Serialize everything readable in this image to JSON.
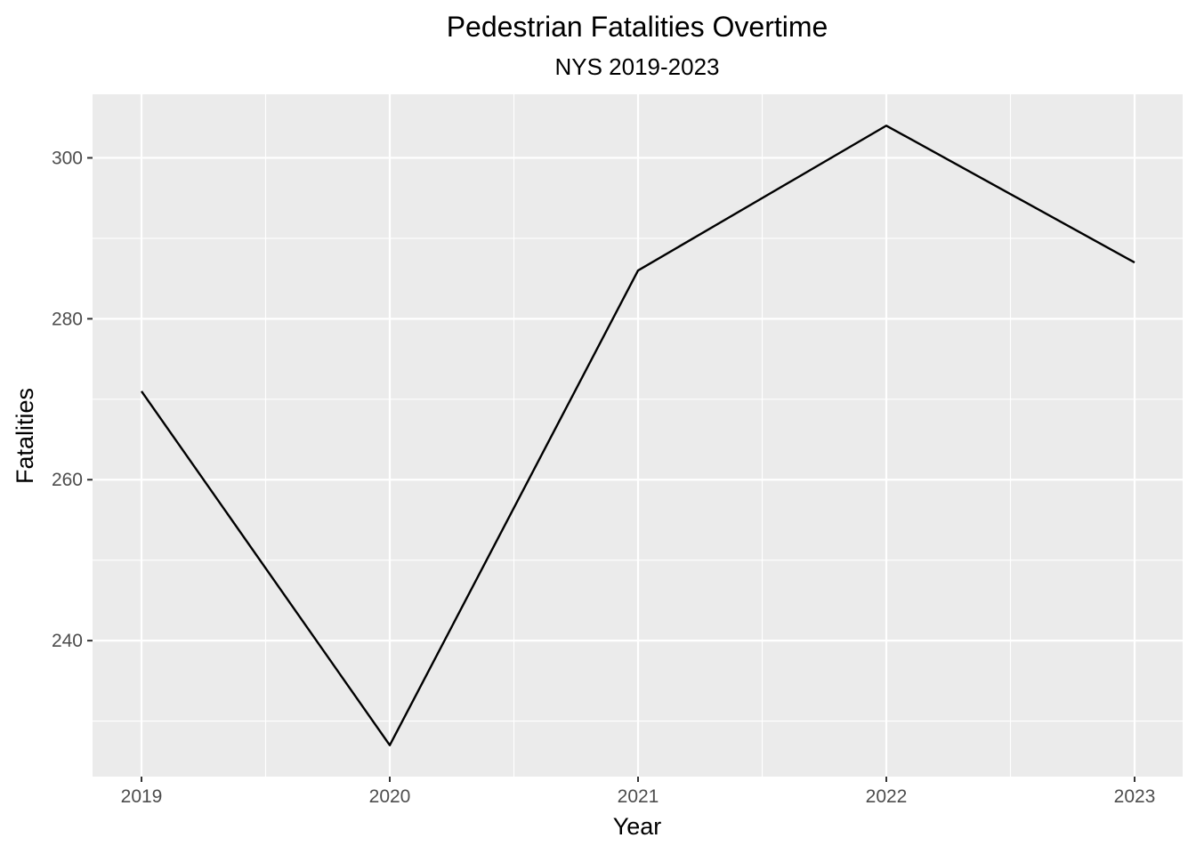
{
  "chart_data": {
    "type": "line",
    "title": "Pedestrian Fatalities Overtime",
    "subtitle": "NYS 2019-2023",
    "xlabel": "Year",
    "ylabel": "Fatalities",
    "x": [
      "2019",
      "2020",
      "2021",
      "2022",
      "2023"
    ],
    "series": [
      {
        "values": [
          271,
          227,
          286,
          304,
          287
        ]
      }
    ],
    "y_ticks": [
      240,
      260,
      280,
      300
    ],
    "ylim": [
      223.1,
      307.9
    ],
    "grid": true,
    "colors": {
      "panel": "#ebebeb",
      "grid": "#ffffff",
      "line": "#000000"
    }
  }
}
